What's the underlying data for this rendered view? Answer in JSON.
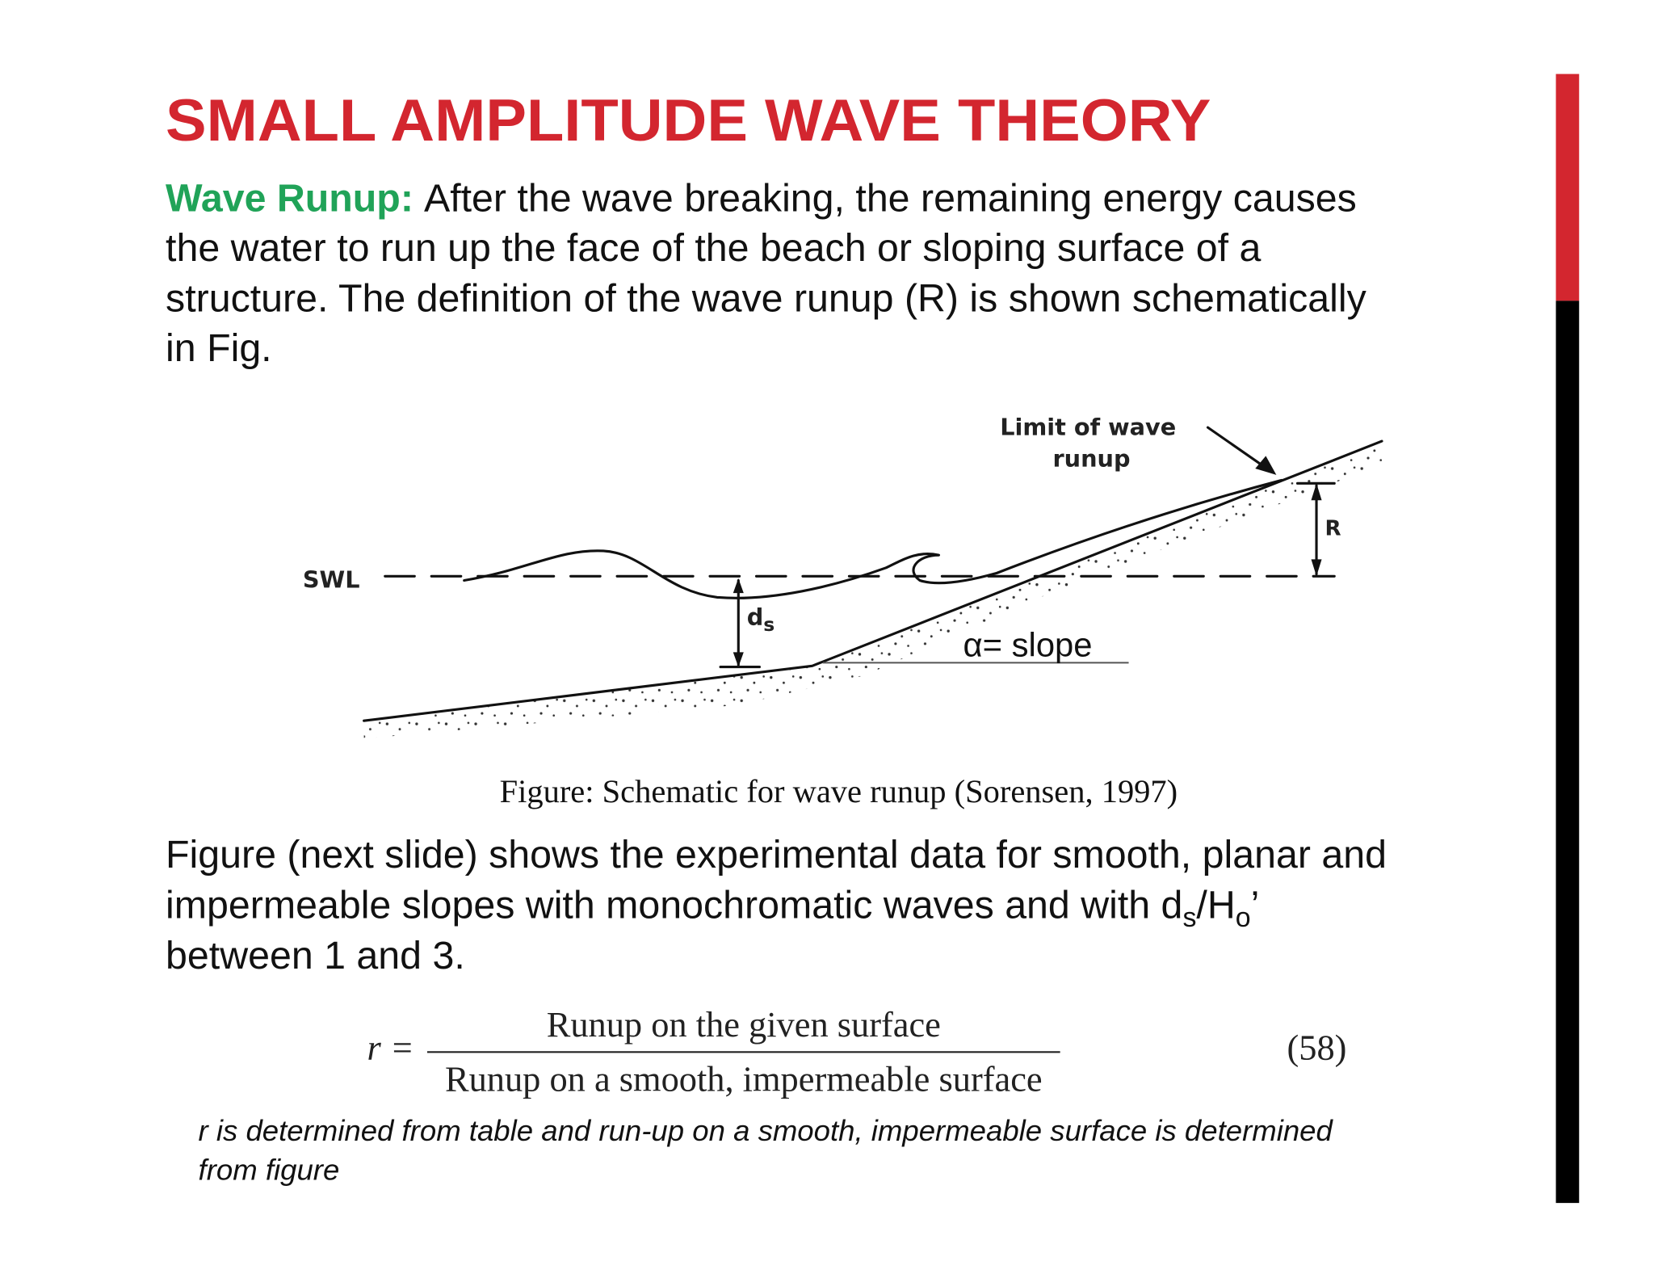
{
  "title": "SMALL AMPLITUDE WAVE THEORY",
  "intro": {
    "label": "Wave Runup:",
    "lines": [
      "After the wave breaking, the remaining energy causes",
      "the water to run up the face of the beach or sloping surface of a",
      "structure. The definition of the wave runup (R) is shown schematically",
      "in Fig."
    ]
  },
  "figure": {
    "swl": "SWL",
    "limit_label": [
      "Limit of wave",
      "runup"
    ],
    "runup": "R",
    "depth": [
      "d",
      "s"
    ],
    "slope": "α= slope",
    "caption": "Figure: Schematic for wave runup (Sorensen, 1997)"
  },
  "paragraph": {
    "line1": "Figure (next slide) shows the experimental data for smooth, planar and",
    "line2": [
      "impermeable slopes with monochromatic waves and with d",
      "s",
      "/H",
      "o",
      "’"
    ],
    "line3": "between 1 and 3."
  },
  "equation": {
    "lhs": "r =",
    "numerator": "Runup on the given surface",
    "denominator": "Runup on a smooth, impermeable surface",
    "number": "(58)"
  },
  "note": {
    "lines": [
      "r is determined from table and run-up on a smooth, impermeable surface is determined",
      "from figure"
    ]
  }
}
